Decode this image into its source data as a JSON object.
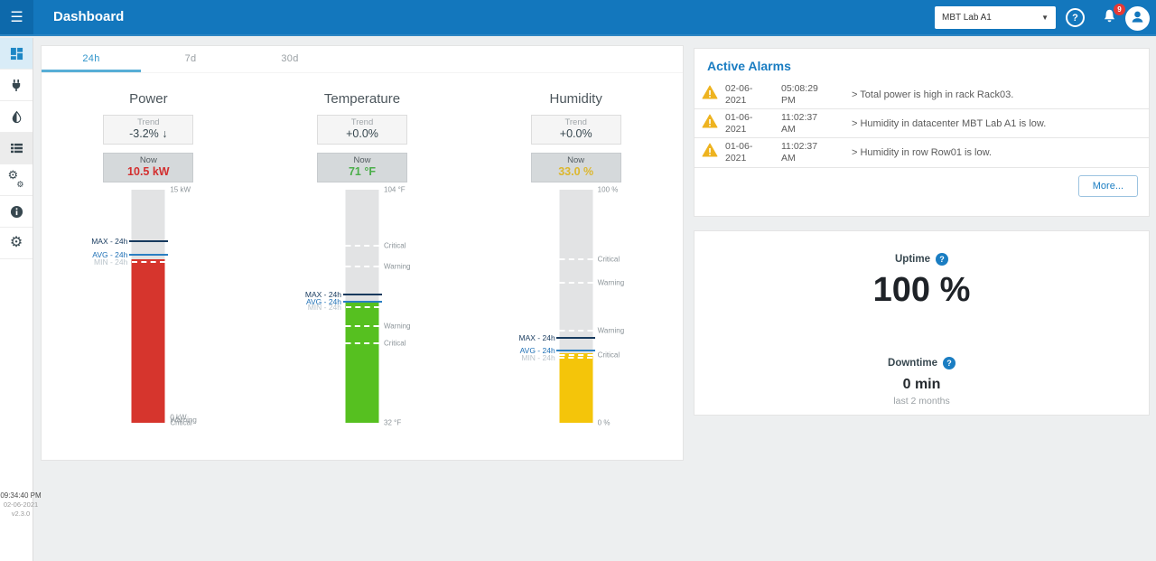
{
  "header": {
    "title": "Dashboard",
    "site": "MBT Lab A1",
    "notifications": "9"
  },
  "sidebar": {
    "items": [
      {
        "name": "dashboard",
        "icon": "dashboard-icon",
        "active": true
      },
      {
        "name": "power",
        "icon": "power-plug-icon"
      },
      {
        "name": "humidity",
        "icon": "droplet-icon"
      },
      {
        "name": "assets",
        "icon": "list-icon",
        "highlight": true
      },
      {
        "name": "services",
        "icon": "gears-icon"
      },
      {
        "name": "info",
        "icon": "info-icon"
      },
      {
        "name": "settings",
        "icon": "gear-icon"
      }
    ],
    "footer": {
      "time": "09:34:40 PM",
      "date": "02-06-2021",
      "version": "v2.3.0"
    }
  },
  "tabs": [
    {
      "label": "24h",
      "active": true
    },
    {
      "label": "7d",
      "active": false
    },
    {
      "label": "30d",
      "active": false
    }
  ],
  "chart_data": [
    {
      "type": "gauge-bar",
      "title": "Power",
      "trend_label": "Trend",
      "trend_value": "-3.2%",
      "trend_direction": "down",
      "now_label": "Now",
      "now_value": "10.5 kW",
      "now_color": "#d32f2f",
      "unit": "kW",
      "range": [
        0,
        15
      ],
      "current": 10.5,
      "fill_pct": 70,
      "fill_color": "#d6352d",
      "markers": {
        "max_label": "MAX - 24h",
        "max_pct": 78,
        "max_value": 11.7,
        "avg_label": "AVG - 24h",
        "avg_pct": 72,
        "avg_value": 10.8,
        "min_label": "MIN - 24h",
        "min_pct": 69,
        "min_value": 10.4
      },
      "threshold_lines_pct": [],
      "right_labels": [
        {
          "label": "15 kW",
          "pct": 100
        },
        {
          "label": "0 kW",
          "pct": 2.5
        },
        {
          "label": "Warning",
          "pct": 1
        },
        {
          "label": "Critical",
          "pct": 0
        }
      ]
    },
    {
      "type": "gauge-bar",
      "title": "Temperature",
      "trend_label": "Trend",
      "trend_value": "+0.0%",
      "trend_direction": "flat",
      "now_label": "Now",
      "now_value": "71 °F",
      "now_color": "#4aae49",
      "unit": "°F",
      "range": [
        32,
        104
      ],
      "current": 71,
      "fill_pct": 52,
      "fill_color": "#56c020",
      "markers": {
        "max_label": "MAX - 24h",
        "max_pct": 55,
        "max_value": 71.6,
        "avg_label": "AVG - 24h",
        "avg_pct": 52,
        "avg_value": 69.4,
        "min_label": "MIN - 24h",
        "min_pct": 49.5,
        "min_value": 67.6
      },
      "threshold_lines_pct": [
        76,
        67,
        41.5,
        34
      ],
      "right_labels": [
        {
          "label": "104 °F",
          "pct": 100
        },
        {
          "label": "Critical",
          "pct": 76
        },
        {
          "label": "Warning",
          "pct": 67
        },
        {
          "label": "Warning",
          "pct": 41.5
        },
        {
          "label": "Critical",
          "pct": 34
        },
        {
          "label": "32 °F",
          "pct": 0
        }
      ]
    },
    {
      "type": "gauge-bar",
      "title": "Humidity",
      "trend_label": "Trend",
      "trend_value": "+0.0%",
      "trend_direction": "flat",
      "now_label": "Now",
      "now_value": "33.0 %",
      "now_color": "#dcb72e",
      "unit": "%",
      "range": [
        0,
        100
      ],
      "current": 33.0,
      "fill_pct": 30,
      "fill_color": "#f4c50a",
      "markers": {
        "max_label": "MAX - 24h",
        "max_pct": 36.5,
        "max_value": 36.5,
        "avg_label": "AVG - 24h",
        "avg_pct": 31,
        "avg_value": 31,
        "min_label": "MIN - 24h",
        "min_pct": 28,
        "min_value": 28
      },
      "threshold_lines_pct": [
        70,
        60,
        39.5,
        29
      ],
      "right_labels": [
        {
          "label": "100 %",
          "pct": 100
        },
        {
          "label": "Critical",
          "pct": 70
        },
        {
          "label": "Warning",
          "pct": 60
        },
        {
          "label": "Warning",
          "pct": 39.5
        },
        {
          "label": "Critical",
          "pct": 29
        },
        {
          "label": "0 %",
          "pct": 0
        }
      ]
    }
  ],
  "alarms": {
    "title": "Active Alarms",
    "more_label": "More...",
    "items": [
      {
        "date": "02-06-2021",
        "time": "05:08:29 PM",
        "message": "> Total power is high in rack Rack03."
      },
      {
        "date": "01-06-2021",
        "time": "11:02:37 AM",
        "message": "> Humidity in datacenter MBT Lab A1 is low."
      },
      {
        "date": "01-06-2021",
        "time": "11:02:37 AM",
        "message": "> Humidity in row Row01 is low."
      }
    ]
  },
  "uptime": {
    "uptime_label": "Uptime",
    "uptime_value": "100 %",
    "downtime_label": "Downtime",
    "downtime_value": "0 min",
    "downtime_period": "last 2 months"
  },
  "colors": {
    "header_blue": "#1377bd",
    "accent_blue": "#1a7dc2",
    "alarm_amber": "#eeb31f",
    "power_red": "#d6352d",
    "temp_green": "#56c020",
    "humidity_yellow": "#f4c50a"
  }
}
